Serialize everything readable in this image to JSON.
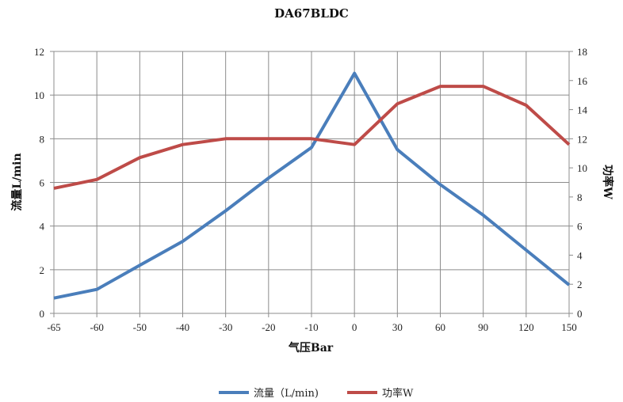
{
  "chart_data": {
    "type": "line",
    "title": "DA67BLDC",
    "xlabel": "气压Bar",
    "ylabel_left": "流量L/min",
    "ylabel_right": "功率W",
    "categories": [
      "-65",
      "-60",
      "-50",
      "-40",
      "-30",
      "-20",
      "-10",
      "0",
      "30",
      "60",
      "90",
      "120",
      "150"
    ],
    "series": [
      {
        "name": "流量（L/min)",
        "axis": "left",
        "color": "#4a7ebb",
        "values": [
          0.7,
          1.1,
          2.2,
          3.3,
          4.7,
          6.2,
          7.6,
          11.0,
          7.5,
          5.9,
          4.5,
          2.9,
          1.3
        ]
      },
      {
        "name": "功率W",
        "axis": "right",
        "color": "#be4b48",
        "values": [
          8.6,
          9.2,
          10.7,
          11.6,
          12.0,
          12.0,
          12.0,
          11.6,
          14.4,
          15.6,
          15.6,
          14.3,
          11.6
        ]
      }
    ],
    "ylim_left": [
      0,
      12
    ],
    "yticks_left": [
      "0",
      "2",
      "4",
      "6",
      "8",
      "10",
      "12"
    ],
    "ylim_right": [
      0,
      18
    ],
    "yticks_right": [
      "0",
      "2",
      "4",
      "6",
      "8",
      "10",
      "12",
      "14",
      "16",
      "18"
    ],
    "grid": true,
    "legend": "bottom"
  }
}
